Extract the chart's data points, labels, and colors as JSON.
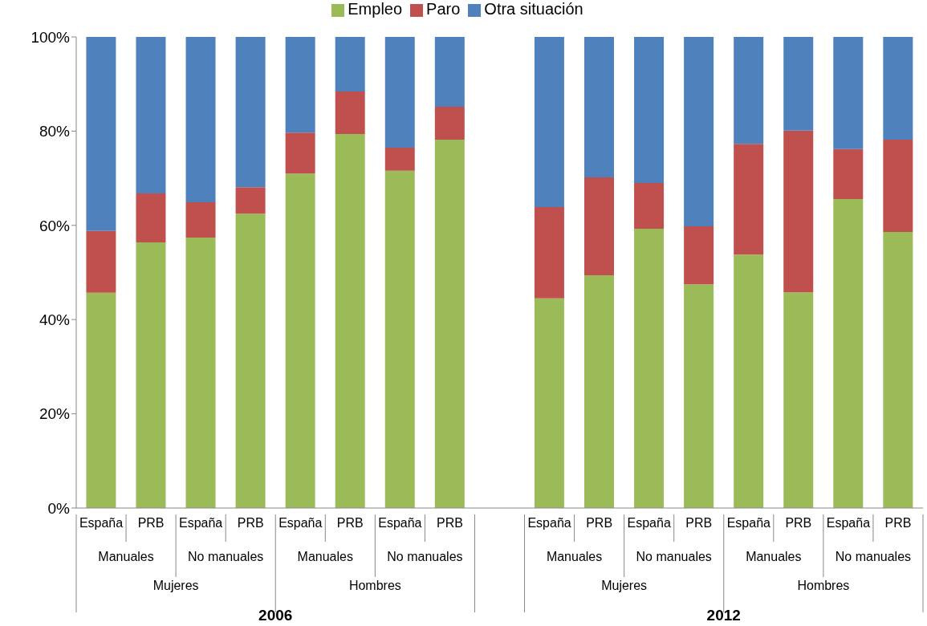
{
  "chart_data": {
    "type": "bar",
    "stacked": true,
    "legend": "top",
    "categories": [
      "España",
      "PRB",
      "España",
      "PRB",
      "España",
      "PRB",
      "España",
      "PRB",
      null,
      "España",
      "PRB",
      "España",
      "PRB",
      "España",
      "PRB",
      "España",
      "PRB"
    ],
    "series": [
      {
        "name": "Empleo",
        "color": "#9bbb59",
        "values": [
          45.7,
          56.4,
          57.4,
          62.5,
          71.0,
          79.4,
          71.6,
          78.2,
          null,
          44.5,
          49.4,
          59.3,
          47.5,
          53.8,
          45.8,
          65.6,
          58.6
        ]
      },
      {
        "name": "Paro",
        "color": "#c0504d",
        "values": [
          13.1,
          10.4,
          7.5,
          5.6,
          8.7,
          9.0,
          4.9,
          7.0,
          null,
          19.4,
          20.8,
          9.7,
          12.3,
          23.5,
          34.3,
          10.6,
          19.6
        ]
      },
      {
        "name": "Otra situación",
        "color": "#4f81bd",
        "values": [
          41.2,
          33.2,
          35.1,
          31.9,
          20.3,
          11.6,
          23.5,
          14.8,
          null,
          36.1,
          29.8,
          31.0,
          40.2,
          22.7,
          19.9,
          23.8,
          21.8
        ]
      }
    ],
    "ylim": [
      0,
      100
    ],
    "yticks": [
      {
        "value": 0,
        "label": "0%"
      },
      {
        "value": 20,
        "label": "20%"
      },
      {
        "value": 40,
        "label": "40%"
      },
      {
        "value": 60,
        "label": "60%"
      },
      {
        "value": 80,
        "label": "80%"
      },
      {
        "value": 100,
        "label": "100%"
      }
    ],
    "annotations": [
      "Manuales",
      "No manuales",
      "Manuales",
      "No manuales",
      "Manuales",
      "No manuales",
      "Manuales",
      "No manuales",
      "Mujeres",
      "Hombres",
      "Mujeres",
      "Hombres",
      "2006",
      "2012"
    ]
  }
}
